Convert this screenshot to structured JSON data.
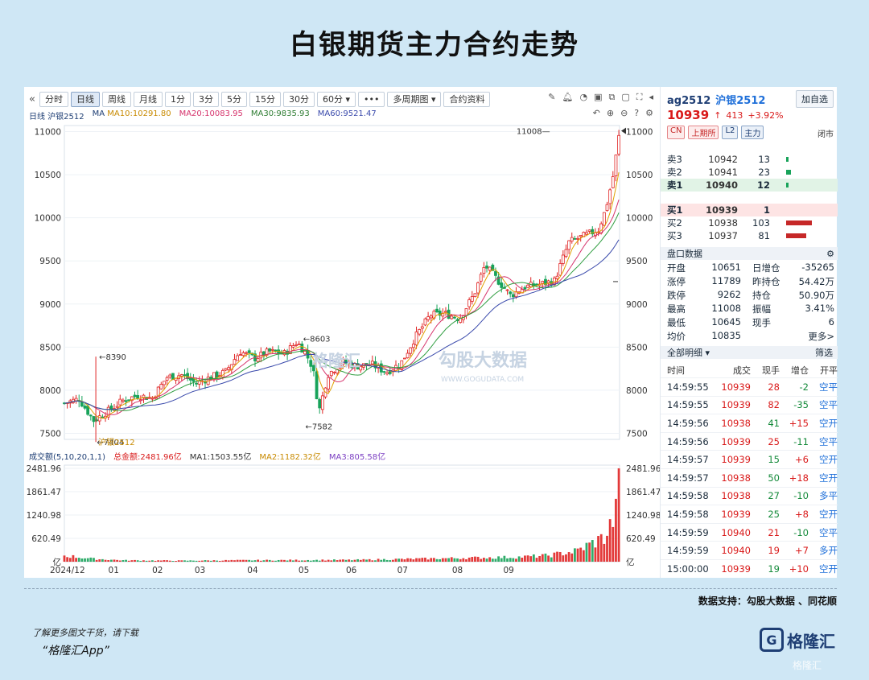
{
  "title": "白银期货主力合约走势",
  "toolbar": {
    "arrow": "«",
    "buttons": [
      "分时",
      "日线",
      "周线",
      "月线",
      "1分",
      "3分",
      "5分",
      "15分",
      "30分",
      "60分 ▾",
      "•••",
      "多周期图 ▾",
      "合约资料"
    ],
    "active": "日线",
    "icons_top": [
      "pencil-icon",
      "bell-icon",
      "compare-icon",
      "camera-icon",
      "copy-icon",
      "clone-icon",
      "expand-icon",
      "arrow-left-icon"
    ],
    "icons_bottom": [
      "undo-icon",
      "zoom-in-icon",
      "zoom-out-icon",
      "help-icon",
      "settings-icon"
    ]
  },
  "ma_legend": {
    "label": "日线 沪银2512",
    "ma": "MA",
    "ma10": "MA10:10291.80",
    "ma20": "MA20:10083.95",
    "ma30": "MA30:9835.93",
    "ma60": "MA60:9521.47"
  },
  "vol_legend": {
    "label": "成交额(5,10,20,1,1)",
    "total": "总金额:2481.96亿",
    "ma1": "MA1:1503.55亿",
    "ma2": "MA2:1182.32亿",
    "ma3": "MA3:805.58亿"
  },
  "colors": {
    "up": "#e02424",
    "down": "#18a35a",
    "ma10": "#e0a000",
    "ma20": "#d6336c",
    "ma30": "#2e9d3f",
    "ma60": "#3949ab"
  },
  "chart_data": {
    "type": "candlestick",
    "xlabels": [
      "2024/12",
      "01",
      "02",
      "03",
      "04",
      "05",
      "06",
      "07",
      "08",
      "09"
    ],
    "yticks": [
      11000,
      10500,
      10000,
      9500,
      9000,
      8500,
      8000,
      7500
    ],
    "ylim": [
      7430,
      11070
    ],
    "annotations": [
      {
        "text": "8390",
        "x": 43,
        "y": 8390
      },
      {
        "text": "7404",
        "x": 40,
        "y": 7404
      },
      {
        "text": "沪银2512",
        "x": 42,
        "y": 7404
      },
      {
        "text": "8603",
        "x": 322,
        "y": 8603
      },
      {
        "text": "7582",
        "x": 325,
        "y": 7582
      },
      {
        "text": "11008",
        "x": 662,
        "y": 11008
      }
    ],
    "close_anchors": [
      [
        0,
        7850
      ],
      [
        20,
        7900
      ],
      [
        40,
        7650
      ],
      [
        60,
        7760
      ],
      [
        80,
        7880
      ],
      [
        100,
        7940
      ],
      [
        120,
        7910
      ],
      [
        140,
        8150
      ],
      [
        160,
        8180
      ],
      [
        180,
        8080
      ],
      [
        200,
        8150
      ],
      [
        220,
        8210
      ],
      [
        240,
        8450
      ],
      [
        260,
        8370
      ],
      [
        280,
        8450
      ],
      [
        300,
        8420
      ],
      [
        318,
        8560
      ],
      [
        330,
        8430
      ],
      [
        340,
        8250
      ],
      [
        348,
        7750
      ],
      [
        360,
        8180
      ],
      [
        380,
        8330
      ],
      [
        400,
        8280
      ],
      [
        420,
        8300
      ],
      [
        440,
        8210
      ],
      [
        460,
        8310
      ],
      [
        480,
        8620
      ],
      [
        500,
        8870
      ],
      [
        520,
        8890
      ],
      [
        540,
        8830
      ],
      [
        560,
        9110
      ],
      [
        575,
        9450
      ],
      [
        590,
        9300
      ],
      [
        610,
        9100
      ],
      [
        630,
        9200
      ],
      [
        650,
        9230
      ],
      [
        670,
        9270
      ],
      [
        690,
        9720
      ],
      [
        710,
        9790
      ],
      [
        730,
        9860
      ],
      [
        740,
        10100
      ],
      [
        750,
        10480
      ],
      [
        758,
        10939
      ]
    ],
    "vol_axis": {
      "ticks": [
        "2481.96",
        "1861.47",
        "1240.98",
        "620.49",
        "亿"
      ],
      "max": 2481.96
    },
    "vol_anchors": [
      [
        0,
        170
      ],
      [
        40,
        80
      ],
      [
        80,
        40
      ],
      [
        160,
        30
      ],
      [
        240,
        40
      ],
      [
        320,
        45
      ],
      [
        400,
        50
      ],
      [
        480,
        80
      ],
      [
        560,
        110
      ],
      [
        620,
        130
      ],
      [
        660,
        170
      ],
      [
        700,
        300
      ],
      [
        740,
        700
      ],
      [
        755,
        1400
      ],
      [
        758,
        2481.96
      ]
    ]
  },
  "side": {
    "code": "ag2512",
    "name": "沪银2512",
    "add_button": "加自选",
    "price": "10939",
    "arrow": "↑",
    "change": "413",
    "pct": "+3.92%",
    "tags": [
      "CN",
      "上期所",
      "L2",
      "主力"
    ],
    "status": "闭市",
    "asks": [
      {
        "label": "卖3",
        "price": "10942",
        "qty": "13",
        "bar": 3
      },
      {
        "label": "卖2",
        "price": "10941",
        "qty": "23",
        "bar": 6
      },
      {
        "label": "卖1",
        "price": "10940",
        "qty": "12",
        "bar": 3
      }
    ],
    "bids": [
      {
        "label": "买1",
        "price": "10939",
        "qty": "1",
        "bar": 0
      },
      {
        "label": "买2",
        "price": "10938",
        "qty": "103",
        "bar": 32
      },
      {
        "label": "买3",
        "price": "10937",
        "qty": "81",
        "bar": 25
      }
    ],
    "pankou_title": "盘口数据",
    "stats": [
      {
        "l1": "开盘",
        "v1": "10651",
        "l2": "日增仓",
        "v2": "-35265"
      },
      {
        "l1": "涨停",
        "v1": "11789",
        "l2": "昨持仓",
        "v2": "54.42万"
      },
      {
        "l1": "跌停",
        "v1": "9262",
        "l2": "持仓",
        "v2": "50.90万"
      },
      {
        "l1": "最高",
        "v1": "11008",
        "l2": "振幅",
        "v2": "3.41%"
      },
      {
        "l1": "最低",
        "v1": "10645",
        "l2": "现手",
        "v2": "6"
      },
      {
        "l1": "均价",
        "v1": "10835",
        "l2": "",
        "v2": "更多>"
      }
    ],
    "detail_title": "全部明细 ▾",
    "filter": "筛选",
    "trade_headers": [
      "时间",
      "成交",
      "现手",
      "增仓",
      "开平"
    ],
    "trades": [
      {
        "time": "14:59:55",
        "price": "10939",
        "vol": "28",
        "chg": "-2",
        "type": "空平",
        "vc": "red",
        "cc": "green",
        "tc": "blue"
      },
      {
        "time": "14:59:55",
        "price": "10939",
        "vol": "82",
        "chg": "-35",
        "type": "空平",
        "vc": "red",
        "cc": "green",
        "tc": "blue"
      },
      {
        "time": "14:59:56",
        "price": "10938",
        "vol": "41",
        "chg": "+15",
        "type": "空开",
        "vc": "green",
        "cc": "red",
        "tc": "blue"
      },
      {
        "time": "14:59:56",
        "price": "10939",
        "vol": "25",
        "chg": "-11",
        "type": "空平",
        "vc": "red",
        "cc": "green",
        "tc": "blue"
      },
      {
        "time": "14:59:57",
        "price": "10939",
        "vol": "15",
        "chg": "+6",
        "type": "空开",
        "vc": "green",
        "cc": "red",
        "tc": "blue"
      },
      {
        "time": "14:59:57",
        "price": "10938",
        "vol": "50",
        "chg": "+18",
        "type": "空开",
        "vc": "green",
        "cc": "red",
        "tc": "blue"
      },
      {
        "time": "14:59:58",
        "price": "10938",
        "vol": "27",
        "chg": "-10",
        "type": "多平",
        "vc": "green",
        "cc": "green",
        "tc": "blue"
      },
      {
        "time": "14:59:58",
        "price": "10939",
        "vol": "25",
        "chg": "+8",
        "type": "空开",
        "vc": "green",
        "cc": "red",
        "tc": "blue"
      },
      {
        "time": "14:59:59",
        "price": "10940",
        "vol": "21",
        "chg": "-10",
        "type": "空平",
        "vc": "red",
        "cc": "green",
        "tc": "blue"
      },
      {
        "time": "14:59:59",
        "price": "10940",
        "vol": "19",
        "chg": "+7",
        "type": "多开",
        "vc": "red",
        "cc": "red",
        "tc": "blue"
      },
      {
        "time": "15:00:00",
        "price": "10939",
        "vol": "19",
        "chg": "+10",
        "type": "空开",
        "vc": "green",
        "cc": "red",
        "tc": "blue"
      }
    ]
  },
  "footer": {
    "source": "数据支持：勾股大数据 、同花顺",
    "download": "了解更多图文干货，请下载",
    "app": "“格隆汇App”",
    "logo_text": "格隆汇",
    "watermark": "格隆汇",
    "chart_watermark1": "格隆汇",
    "chart_watermark2": "勾股大数据",
    "chart_watermark3": "WWW.GOGUDATA.COM"
  }
}
